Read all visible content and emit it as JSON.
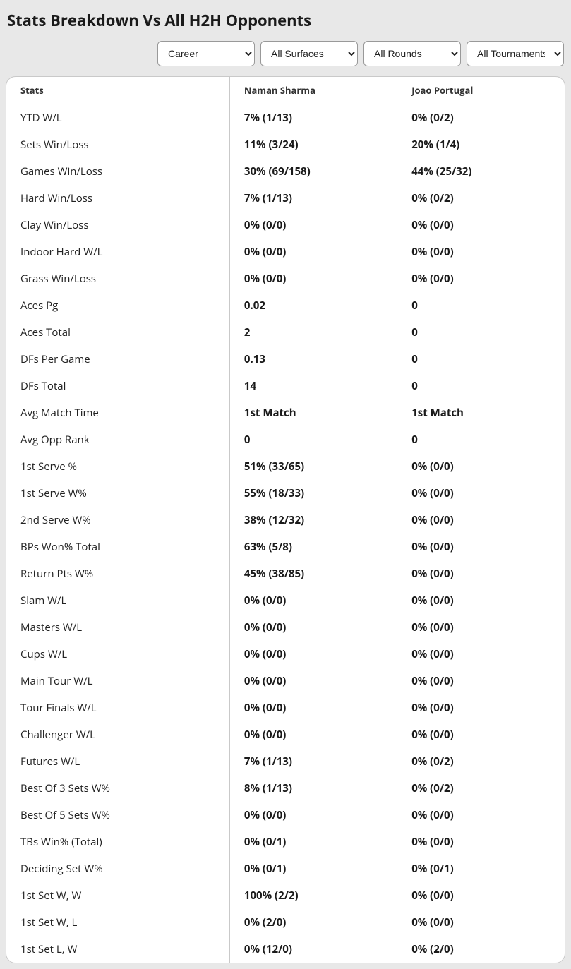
{
  "title": "Stats Breakdown Vs All H2H Opponents",
  "filters": {
    "period": {
      "selected": "Career",
      "options": [
        "Career"
      ]
    },
    "surface": {
      "selected": "All Surfaces",
      "options": [
        "All Surfaces"
      ]
    },
    "round": {
      "selected": "All Rounds",
      "options": [
        "All Rounds"
      ]
    },
    "tournament": {
      "selected": "All Tournaments",
      "options": [
        "All Tournaments"
      ]
    }
  },
  "columns": {
    "stats": "Stats",
    "player1": "Naman Sharma",
    "player2": "Joao Portugal"
  },
  "rows": [
    {
      "stat": "YTD W/L",
      "p1": "7% (1/13)",
      "p2": "0% (0/2)"
    },
    {
      "stat": "Sets Win/Loss",
      "p1": "11% (3/24)",
      "p2": "20% (1/4)"
    },
    {
      "stat": "Games Win/Loss",
      "p1": "30% (69/158)",
      "p2": "44% (25/32)"
    },
    {
      "stat": "Hard Win/Loss",
      "p1": "7% (1/13)",
      "p2": "0% (0/2)"
    },
    {
      "stat": "Clay Win/Loss",
      "p1": "0% (0/0)",
      "p2": "0% (0/0)"
    },
    {
      "stat": "Indoor Hard W/L",
      "p1": "0% (0/0)",
      "p2": "0% (0/0)"
    },
    {
      "stat": "Grass Win/Loss",
      "p1": "0% (0/0)",
      "p2": "0% (0/0)"
    },
    {
      "stat": "Aces Pg",
      "p1": "0.02",
      "p2": "0"
    },
    {
      "stat": "Aces Total",
      "p1": "2",
      "p2": "0"
    },
    {
      "stat": "DFs Per Game",
      "p1": "0.13",
      "p2": "0"
    },
    {
      "stat": "DFs Total",
      "p1": "14",
      "p2": "0"
    },
    {
      "stat": "Avg Match Time",
      "p1": "1st Match",
      "p2": "1st Match"
    },
    {
      "stat": "Avg Opp Rank",
      "p1": "0",
      "p2": "0"
    },
    {
      "stat": "1st Serve %",
      "p1": "51% (33/65)",
      "p2": "0% (0/0)"
    },
    {
      "stat": "1st Serve W%",
      "p1": "55% (18/33)",
      "p2": "0% (0/0)"
    },
    {
      "stat": "2nd Serve W%",
      "p1": "38% (12/32)",
      "p2": "0% (0/0)"
    },
    {
      "stat": "BPs Won% Total",
      "p1": "63% (5/8)",
      "p2": "0% (0/0)"
    },
    {
      "stat": "Return Pts W%",
      "p1": "45% (38/85)",
      "p2": "0% (0/0)"
    },
    {
      "stat": "Slam W/L",
      "p1": "0% (0/0)",
      "p2": "0% (0/0)"
    },
    {
      "stat": "Masters W/L",
      "p1": "0% (0/0)",
      "p2": "0% (0/0)"
    },
    {
      "stat": "Cups W/L",
      "p1": "0% (0/0)",
      "p2": "0% (0/0)"
    },
    {
      "stat": "Main Tour W/L",
      "p1": "0% (0/0)",
      "p2": "0% (0/0)"
    },
    {
      "stat": "Tour Finals W/L",
      "p1": "0% (0/0)",
      "p2": "0% (0/0)"
    },
    {
      "stat": "Challenger W/L",
      "p1": "0% (0/0)",
      "p2": "0% (0/0)"
    },
    {
      "stat": "Futures W/L",
      "p1": "7% (1/13)",
      "p2": "0% (0/2)"
    },
    {
      "stat": "Best Of 3 Sets W%",
      "p1": "8% (1/13)",
      "p2": "0% (0/2)"
    },
    {
      "stat": "Best Of 5 Sets W%",
      "p1": "0% (0/0)",
      "p2": "0% (0/0)"
    },
    {
      "stat": "TBs Win% (Total)",
      "p1": "0% (0/1)",
      "p2": "0% (0/0)"
    },
    {
      "stat": "Deciding Set W%",
      "p1": "0% (0/1)",
      "p2": "0% (0/1)"
    },
    {
      "stat": "1st Set W, W",
      "p1": "100% (2/2)",
      "p2": "0% (0/0)"
    },
    {
      "stat": "1st Set W, L",
      "p1": "0% (2/0)",
      "p2": "0% (0/0)"
    },
    {
      "stat": "1st Set L, W",
      "p1": "0% (12/0)",
      "p2": "0% (2/0)"
    }
  ]
}
